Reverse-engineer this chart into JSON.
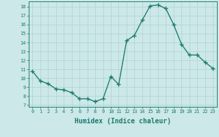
{
  "x": [
    0,
    1,
    2,
    3,
    4,
    5,
    6,
    7,
    8,
    9,
    10,
    11,
    12,
    13,
    14,
    15,
    16,
    17,
    18,
    19,
    20,
    21,
    22,
    23
  ],
  "y": [
    10.8,
    9.7,
    9.4,
    8.8,
    8.7,
    8.4,
    7.7,
    7.7,
    7.4,
    7.7,
    10.2,
    9.3,
    14.2,
    14.8,
    16.5,
    18.1,
    18.2,
    17.8,
    16.0,
    13.8,
    12.6,
    12.6,
    11.8,
    11.1
  ],
  "line_color": "#1a7a6e",
  "marker": "+",
  "marker_size": 4,
  "linewidth": 1.0,
  "xlabel": "Humidex (Indice chaleur)",
  "xlabel_fontsize": 7,
  "xlabel_fontweight": "bold",
  "xtick_labels": [
    "0",
    "1",
    "2",
    "3",
    "4",
    "5",
    "6",
    "7",
    "8",
    "9",
    "10",
    "11",
    "12",
    "13",
    "14",
    "15",
    "16",
    "17",
    "18",
    "19",
    "20",
    "21",
    "22",
    "23"
  ],
  "ytick_min": 7,
  "ytick_max": 18,
  "ytick_step": 1,
  "bg_color": "#cce8e8",
  "grid_color": "#b0d0d0",
  "grid_linewidth": 0.5,
  "tick_color": "#1a7a6e",
  "label_color": "#1a7a6e",
  "spine_color": "#1a7a6e",
  "xlim_left": -0.5,
  "xlim_right": 23.5,
  "ylim_bottom": 6.8,
  "ylim_top": 18.6
}
